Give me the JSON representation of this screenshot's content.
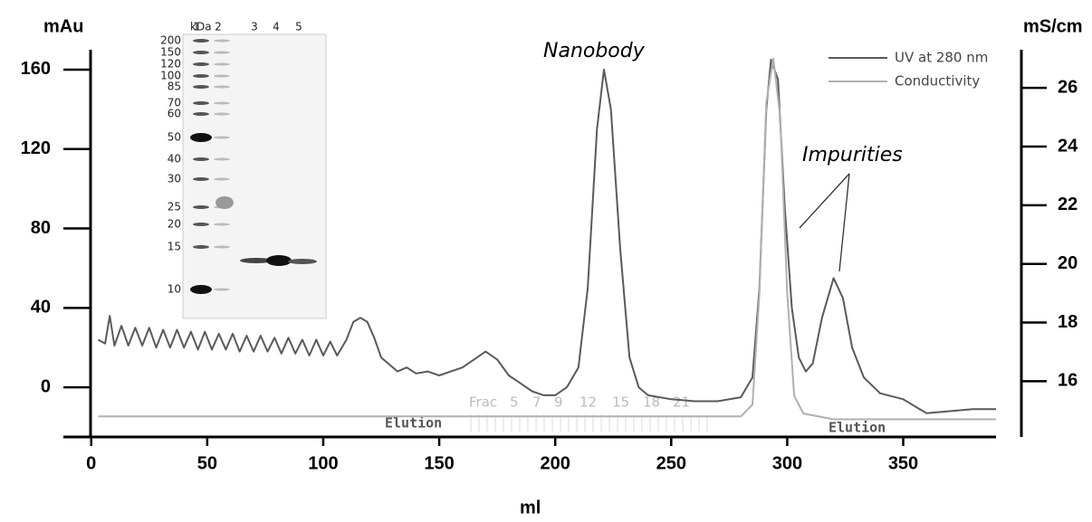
{
  "chart_data": {
    "type": "line",
    "x_label": "ml",
    "y_label": "mAu",
    "y2_label": "mS/cm",
    "xlim": [
      -12,
      390
    ],
    "xticks": [
      0,
      50,
      100,
      150,
      200,
      250,
      300,
      350
    ],
    "ylim": [
      -25,
      170
    ],
    "yticks": [
      0,
      40,
      80,
      120,
      160
    ],
    "y2lim": [
      14.1,
      27.3
    ],
    "y2ticks": [
      16,
      18,
      20,
      22,
      24,
      26
    ],
    "legend": "top-right",
    "series": [
      {
        "name": "UV at 280 nm",
        "color": "#5a5a5a",
        "x": [
          3,
          6,
          8,
          10,
          13,
          16,
          19,
          22,
          25,
          28,
          31,
          34,
          37,
          40,
          43,
          46,
          49,
          52,
          55,
          58,
          61,
          64,
          67,
          70,
          73,
          76,
          79,
          82,
          85,
          88,
          91,
          94,
          97,
          100,
          103,
          106,
          108,
          110,
          113,
          116,
          119,
          122,
          125,
          128,
          132,
          136,
          140,
          145,
          150,
          155,
          160,
          165,
          170,
          175,
          180,
          185,
          190,
          195,
          200,
          205,
          210,
          214,
          218,
          221,
          224,
          228,
          232,
          236,
          240,
          250,
          260,
          270,
          280,
          285,
          288,
          291,
          293,
          296,
          299,
          302,
          305,
          308,
          311,
          315,
          320,
          324,
          328,
          333,
          340,
          350,
          360,
          370,
          380,
          390
        ],
        "values": [
          24,
          22,
          36,
          21,
          31,
          21,
          30,
          21,
          30,
          20,
          29,
          20,
          29,
          20,
          28,
          19,
          28,
          19,
          27,
          19,
          27,
          18,
          26,
          18,
          26,
          18,
          25,
          17,
          25,
          17,
          24,
          16,
          24,
          16,
          23,
          16,
          20,
          24,
          33,
          35,
          33,
          25,
          15,
          12,
          8,
          10,
          7,
          8,
          6,
          8,
          10,
          14,
          18,
          14,
          6,
          2,
          -2,
          -4,
          -4,
          0,
          10,
          50,
          130,
          160,
          140,
          70,
          15,
          0,
          -4,
          -6,
          -7,
          -7,
          -5,
          5,
          50,
          140,
          165,
          155,
          90,
          40,
          15,
          8,
          12,
          35,
          55,
          45,
          20,
          5,
          -3,
          -6,
          -13,
          -12,
          -11,
          -11
        ]
      },
      {
        "name": "Conductivity",
        "color": "#b0b0b0",
        "axis": "y2",
        "x": [
          3,
          280,
          285,
          288,
          291,
          294,
          297,
          300,
          303,
          307,
          320,
          390
        ],
        "values": [
          14.8,
          14.8,
          15.2,
          19,
          25.5,
          27,
          25,
          19,
          15.5,
          14.9,
          14.7,
          14.7
        ]
      }
    ],
    "annotations": {
      "peak1": "Nanobody",
      "peak2": "Impurities",
      "elution1": "Elution",
      "elution2": "Elution",
      "fractions": [
        "Frac",
        "5",
        "7",
        "9",
        "12",
        "15",
        "18",
        "21"
      ]
    },
    "inset": {
      "unit": "kDa",
      "lanes": [
        "1",
        "2",
        "3",
        "4",
        "5"
      ],
      "markers": [
        "200",
        "150",
        "120",
        "100",
        "85",
        "70",
        "60",
        "50",
        "40",
        "30",
        "25",
        "20",
        "15",
        "10"
      ]
    }
  }
}
